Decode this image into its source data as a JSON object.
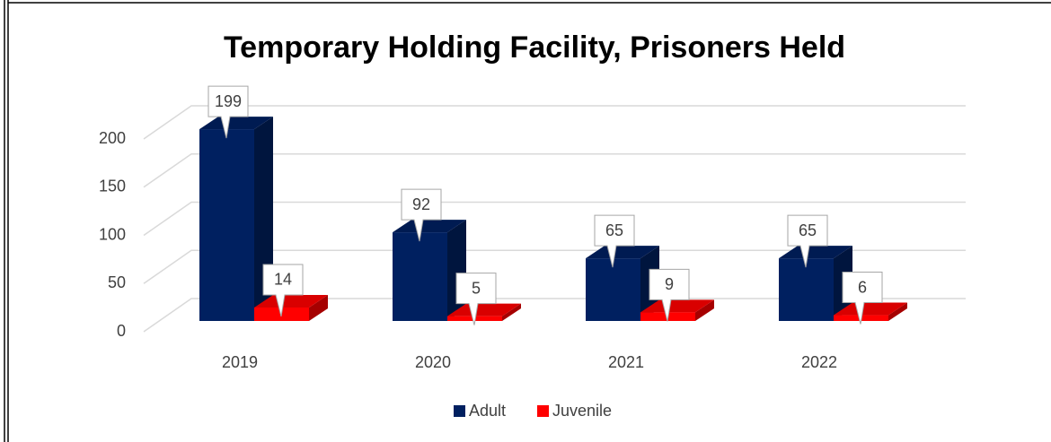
{
  "chart_data": {
    "type": "bar3d",
    "title": "Temporary Holding Facility, Prisoners Held",
    "categories": [
      "2019",
      "2020",
      "2021",
      "2022"
    ],
    "series": [
      {
        "name": "Adult",
        "color": "#002060",
        "values": [
          199,
          92,
          65,
          65
        ]
      },
      {
        "name": "Juvenile",
        "color": "#ff0000",
        "values": [
          14,
          5,
          9,
          6
        ]
      }
    ],
    "ylim": [
      0,
      200
    ],
    "yticks": [
      0,
      50,
      100,
      150,
      200
    ],
    "grid": true,
    "legend": "bottom"
  }
}
